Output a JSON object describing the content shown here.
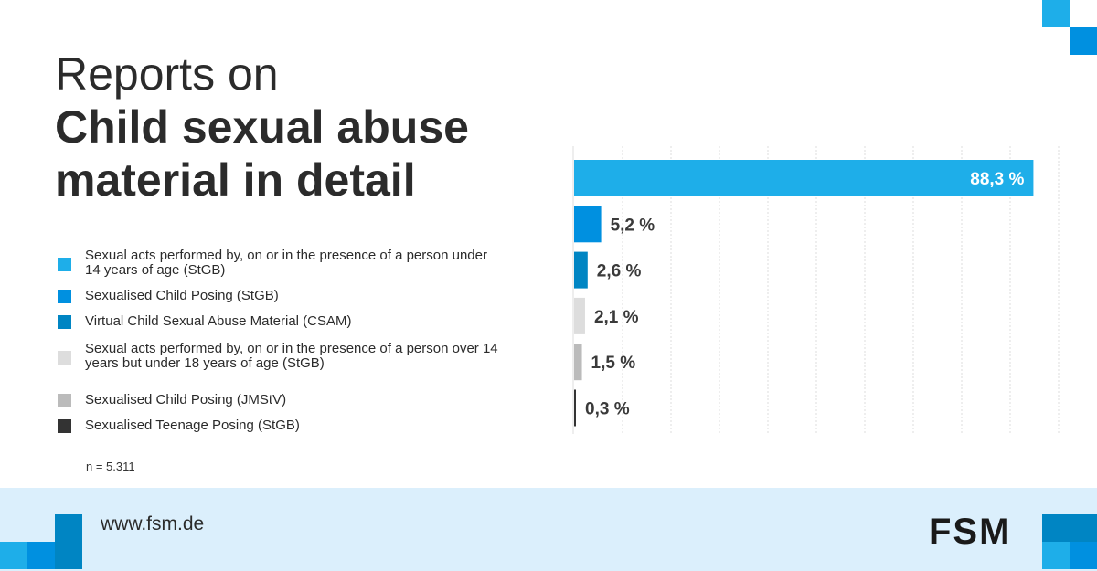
{
  "title": {
    "line1": "Reports on",
    "line2": "Child sexual abuse",
    "line3": "material in detail"
  },
  "note": "n = 5.311",
  "footer": {
    "url": "www.fsm.de",
    "logo": "FSM"
  },
  "colors": {
    "c1": "#1eaee9",
    "c2": "#0090e0",
    "c3": "#0085c3",
    "c4": "#dddddd",
    "c5": "#bbbbbb",
    "c6": "#333333",
    "footer_bg": "#dbeffc"
  },
  "chart_data": {
    "type": "bar",
    "orientation": "horizontal",
    "grid": true,
    "categories": [
      "Sexual acts performed by, on or in the presence of a person under 14 years of age (StGB)",
      "Sexualised Child Posing (StGB)",
      "Virtual Child Sexual Abuse Material (CSAM)",
      "Sexual acts performed by, on or in the presence of a person over 14 years but under 18 years of age (StGB)",
      "Sexualised Child Posing (JMStV)",
      "Sexualised Teenage Posing (StGB)"
    ],
    "values": [
      88.3,
      5.2,
      2.6,
      2.1,
      1.5,
      0.3
    ],
    "labels": [
      "88,3 %",
      "5,2 %",
      "2,6 %",
      "2,1 %",
      "1,5 %",
      "0,3 %"
    ],
    "bar_colors": [
      "#1eaee9",
      "#0090e0",
      "#0085c3",
      "#dddddd",
      "#bbbbbb",
      "#333333"
    ],
    "legend": "left"
  }
}
